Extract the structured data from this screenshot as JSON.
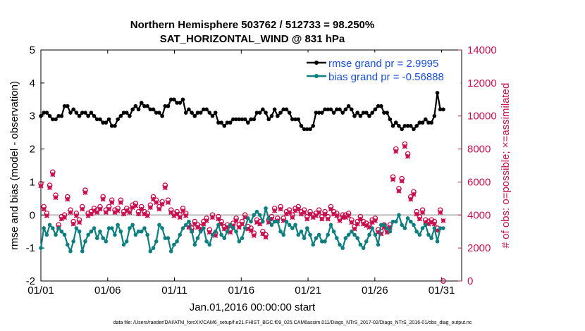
{
  "chart_data": {
    "type": "line",
    "title_line1": "Northern Hemisphere 503762 / 512733 = 98.250%",
    "title_line2": "SAT_HORIZONTAL_WIND @ 831 hPa",
    "xlabel": "Jan.01,2016 00:00:00 start",
    "ylabel_left": "rmse and bias (model - observation)",
    "ylabel_right": "# of obs: o=possible; ×=assimilated",
    "footer": "data file: /Users/raeder/DAI/ATM_forcXX/CAM6_setup/f.e21.FHIST_BGC.f09_025.CAM6assim.011/Diags_NTrS_2017-02/Diags_NTrS_2016-01/obs_diag_output.nc",
    "x_ticks": [
      "01/01",
      "01/06",
      "01/11",
      "01/16",
      "01/21",
      "01/26",
      "01/31"
    ],
    "y_left_ticks": [
      "5",
      "4",
      "3",
      "2",
      "1",
      "0",
      "-1",
      "-2"
    ],
    "y_right_ticks": [
      "14000",
      "12000",
      "10000",
      "8000",
      "6000",
      "4000",
      "2000",
      "0"
    ],
    "ylim_left": [
      -2,
      5
    ],
    "ylim_right": [
      0,
      14000
    ],
    "xlim_days": [
      0,
      31.5
    ],
    "grid": false,
    "legend_location": "top-right",
    "colors": {
      "rmse": "#000000",
      "bias": "#0e7f7f",
      "obs": "#c8104f",
      "zero_line": "#aaaaaa",
      "legend_text": "#1a4fd8"
    },
    "series": [
      {
        "name": "rmse grand pr = 2.9995",
        "legend": "rmse grand pr = 2.9995"
      },
      {
        "name": "bias grand pr = -0.56888",
        "legend": "bias grand pr = -0.56888"
      }
    ],
    "rmse": [
      3.0,
      3.1,
      3.1,
      3.0,
      2.9,
      2.9,
      3.0,
      3.0,
      3.3,
      3.3,
      3.1,
      3.2,
      3.1,
      3.0,
      3.1,
      3.1,
      3.0,
      3.1,
      3.0,
      2.9,
      2.9,
      2.8,
      2.8,
      2.9,
      2.7,
      2.7,
      2.9,
      3.0,
      3.1,
      3.1,
      3.0,
      3.2,
      3.3,
      3.2,
      3.4,
      3.3,
      3.3,
      3.2,
      3.2,
      3.1,
      3.1,
      3.0,
      3.3,
      3.3,
      3.5,
      3.5,
      3.4,
      3.4,
      3.5,
      3.1,
      3.2,
      3.1,
      3.0,
      3.1,
      3.1,
      3.2,
      3.2,
      3.1,
      3.0,
      3.1,
      2.8,
      2.8,
      2.7,
      2.8,
      2.8,
      2.9,
      2.9,
      2.9,
      2.9,
      2.9,
      2.8,
      2.9,
      2.9,
      3.1,
      3.1,
      3.2,
      3.1,
      2.9,
      3.0,
      3.2,
      3.0,
      3.1,
      3.2,
      3.2,
      3.1,
      2.9,
      2.9,
      2.9,
      2.7,
      2.6,
      2.6,
      2.6,
      2.7,
      3.1,
      3.1,
      3.1,
      3.2,
      3.2,
      3.2,
      3.1,
      3.2,
      3.2,
      3.1,
      3.2,
      3.3,
      3.2,
      3.0,
      3.1,
      3.0,
      3.1,
      3.1,
      3.0,
      3.1,
      3.2,
      3.3,
      3.3,
      3.1,
      3.1,
      2.9,
      2.7,
      2.8,
      2.7,
      2.6,
      2.7,
      2.7,
      2.7,
      2.6,
      2.7,
      2.8,
      2.8,
      2.9,
      2.8,
      2.8,
      3.0,
      3.7,
      3.2,
      3.2
    ],
    "bias": [
      -1.0,
      -0.4,
      -0.6,
      -0.3,
      -0.4,
      -0.6,
      -0.4,
      -0.5,
      -0.6,
      -0.9,
      -1.1,
      -0.8,
      -0.4,
      -0.5,
      -1.1,
      -0.8,
      -0.6,
      -0.5,
      -0.4,
      -0.7,
      -0.5,
      -0.7,
      -0.8,
      -0.4,
      -0.4,
      -0.6,
      -0.3,
      -0.5,
      -0.9,
      -0.8,
      -0.4,
      -0.3,
      -0.6,
      -0.5,
      -0.5,
      -0.4,
      -0.6,
      -1.1,
      -1.0,
      -0.8,
      -0.3,
      -0.4,
      -0.7,
      -0.7,
      -1.1,
      -0.9,
      -0.8,
      -0.6,
      -0.4,
      -0.3,
      -0.2,
      -0.5,
      -0.9,
      -0.7,
      -0.5,
      -0.4,
      -0.8,
      -0.9,
      -0.6,
      -0.5,
      -0.3,
      -0.6,
      -0.7,
      -0.5,
      -0.3,
      -0.4,
      -0.5,
      -0.8,
      -0.7,
      -0.4,
      -0.1,
      -0.2,
      0.0,
      0.1,
      0.0,
      -0.2,
      0.2,
      -0.1,
      -0.3,
      -0.2,
      -0.2,
      -0.5,
      -0.6,
      -0.2,
      -0.3,
      -0.4,
      -0.3,
      -0.6,
      -0.5,
      -0.7,
      -0.4,
      -0.6,
      -0.9,
      -0.7,
      -0.6,
      -0.8,
      -0.8,
      -0.6,
      -0.3,
      -0.5,
      -0.7,
      -0.9,
      -1.0,
      -0.7,
      -0.6,
      -0.5,
      -0.6,
      -0.7,
      -0.9,
      -1.0,
      -0.8,
      -0.6,
      -0.4,
      -0.6,
      -0.9,
      -0.3,
      -0.3,
      -0.4,
      -0.5,
      -0.2,
      -0.2,
      0.0,
      -0.3,
      -0.4,
      -0.1,
      -0.2,
      -0.3,
      -0.5,
      -0.6,
      -0.4,
      -0.3,
      -0.6,
      -0.7,
      -0.4,
      -0.8,
      -0.4,
      -0.4
    ],
    "obs_assimilated": [
      5800,
      4400,
      4000,
      5700,
      6500,
      5100,
      3300,
      3800,
      3900,
      5000,
      4200,
      3500,
      4000,
      3600,
      4400,
      5400,
      4000,
      4100,
      4300,
      4200,
      4400,
      5000,
      4200,
      4400,
      4800,
      4200,
      4300,
      4800,
      4100,
      4300,
      4200,
      4500,
      4600,
      4100,
      4400,
      4100,
      4000,
      4500,
      5000,
      4800,
      4400,
      4700,
      5700,
      4800,
      4200,
      4000,
      4100,
      3900,
      4300,
      4000,
      3300,
      3100,
      3500,
      3300,
      3200,
      3500,
      3700,
      3000,
      3900,
      2800,
      3800,
      3500,
      3200,
      3300,
      3000,
      3400,
      3700,
      3300,
      3500,
      3900,
      3200,
      3100,
      2800,
      3600,
      3500,
      2900,
      2700,
      3600,
      3800,
      4300,
      3700,
      4400,
      3700,
      4100,
      4200,
      3900,
      4300,
      4400,
      4100,
      4200,
      3800,
      4100,
      3900,
      4000,
      4200,
      3800,
      4100,
      3800,
      4400,
      4100,
      4000,
      3700,
      3900,
      3900,
      4000,
      3600,
      3200,
      3500,
      3800,
      3500,
      3400,
      3300,
      3600,
      3700,
      3000,
      2900,
      3300,
      3000,
      3300,
      6200,
      7900,
      5500,
      6100,
      8200,
      7600,
      5000,
      5300,
      4100,
      3800,
      4200,
      3600,
      3500,
      3600,
      3500,
      3100,
      4200,
      3700
    ],
    "obs_possible": [
      5900,
      4500,
      4100,
      5800,
      6600,
      5200,
      3400,
      3900,
      4000,
      5100,
      4300,
      3600,
      4100,
      3700,
      4500,
      5500,
      4100,
      4200,
      4400,
      4300,
      4500,
      5100,
      4300,
      4500,
      4900,
      4300,
      4400,
      4900,
      4200,
      4400,
      4300,
      4600,
      4700,
      4200,
      4500,
      4200,
      4100,
      4600,
      5100,
      4900,
      4500,
      4800,
      5800,
      4900,
      4300,
      4100,
      4200,
      4000,
      4400,
      4100,
      3400,
      3200,
      3600,
      3400,
      3300,
      3600,
      3800,
      3100,
      4000,
      2900,
      3900,
      3600,
      3300,
      3400,
      3100,
      3500,
      3800,
      3400,
      3600,
      4000,
      3300,
      3200,
      2900,
      3700,
      3600,
      3000,
      2800,
      3700,
      3900,
      4400,
      3800,
      4500,
      3800,
      4200,
      4300,
      4000,
      4400,
      4500,
      4200,
      4300,
      3900,
      4200,
      4000,
      4100,
      4300,
      3900,
      4200,
      3900,
      4500,
      4200,
      4100,
      3800,
      4000,
      4000,
      4100,
      3700,
      3300,
      3600,
      3900,
      3600,
      3500,
      3400,
      3700,
      3800,
      3100,
      3000,
      3400,
      3100,
      3400,
      6300,
      8000,
      5600,
      6200,
      8300,
      7700,
      5100,
      5400,
      4200,
      3900,
      4300,
      3700,
      3600,
      3700,
      3600,
      3200,
      4300,
      0
    ]
  }
}
